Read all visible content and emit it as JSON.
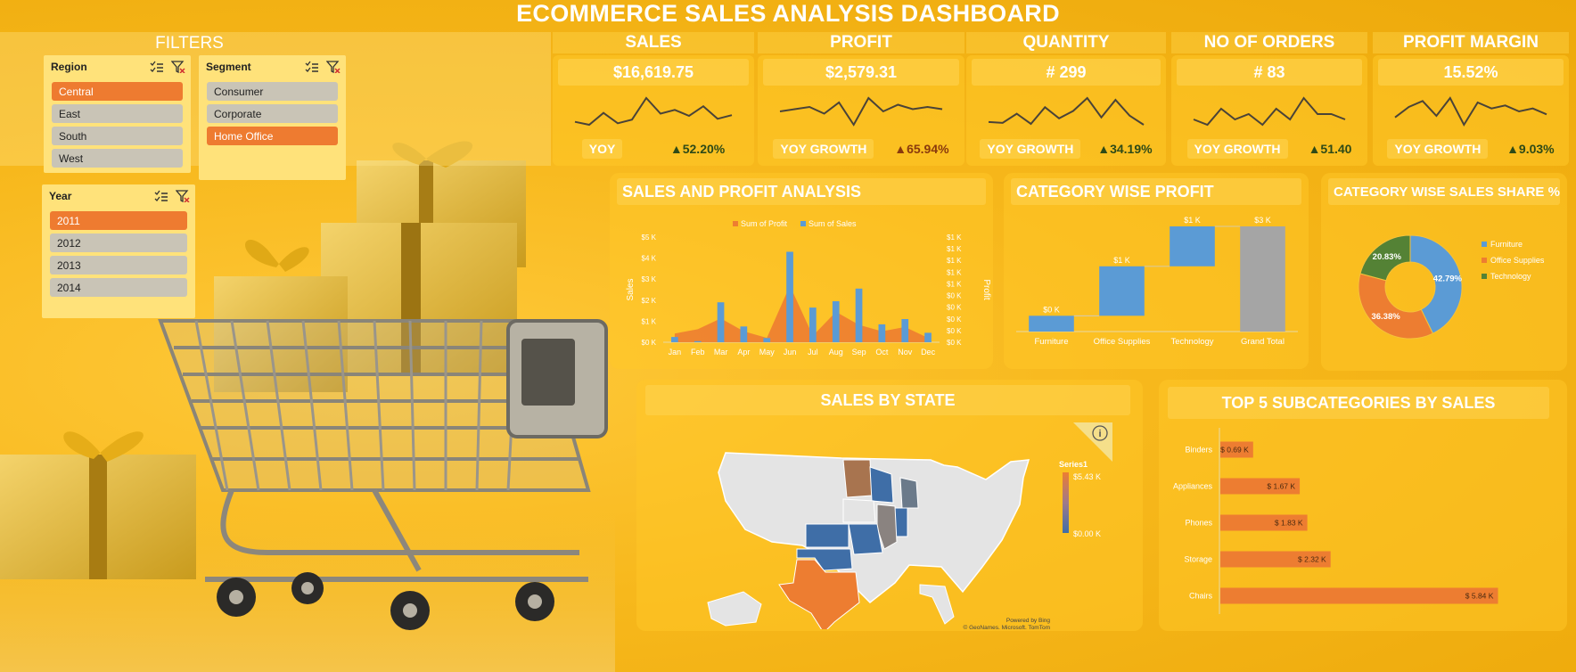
{
  "dashboard": {
    "title": "ECOMMERCE SALES ANALYSIS DASHBOARD"
  },
  "filters": {
    "title": "FILTERS",
    "region": {
      "label": "Region",
      "items": [
        "Central",
        "East",
        "South",
        "West"
      ],
      "selected": "Central"
    },
    "segment": {
      "label": "Segment",
      "items": [
        "Consumer",
        "Corporate",
        "Home Office"
      ],
      "selected": "Home Office"
    },
    "year": {
      "label": "Year",
      "items": [
        "2011",
        "2012",
        "2013",
        "2014"
      ],
      "selected": "2011"
    }
  },
  "kpis": [
    {
      "label": "SALES",
      "value": "$16,619.75",
      "growth_label": "YOY",
      "growth": "▲52.20%",
      "spark": [
        3,
        2.6,
        4.2,
        2.8,
        3.3,
        6.2,
        4.1,
        4.6,
        3.8,
        5.1,
        3.4,
        3.9
      ]
    },
    {
      "label": "PROFIT",
      "value": "$2,579.31",
      "growth_label": "YOY GROWTH",
      "growth": "▲65.94%",
      "spark": [
        3.2,
        3.3,
        3.4,
        3.1,
        3.6,
        2.6,
        3.8,
        3.2,
        3.5,
        3.3,
        3.4,
        3.3
      ]
    },
    {
      "label": "QUANTITY",
      "value": "# 299",
      "growth_label": "YOY GROWTH",
      "growth": "▲34.19%",
      "spark": [
        2.2,
        2.1,
        3.1,
        2.0,
        3.8,
        2.6,
        3.4,
        4.8,
        2.7,
        4.6,
        2.9,
        1.9
      ]
    },
    {
      "label": "NO OF ORDERS",
      "value": "# 83",
      "growth_label": "YOY GROWTH",
      "growth": "▲51.40",
      "spark": [
        3.1,
        3.0,
        3.3,
        3.1,
        3.2,
        3.0,
        3.3,
        3.1,
        3.5,
        3.2,
        3.2,
        3.1
      ]
    },
    {
      "label": "PROFIT MARGIN",
      "value": "15.52%",
      "growth_label": "YOY GROWTH",
      "growth": "▲9.03%",
      "spark": [
        3.1,
        3.8,
        4.2,
        3.2,
        4.4,
        2.6,
        4.1,
        3.7,
        3.9,
        3.5,
        3.7,
        3.3
      ]
    }
  ],
  "panels": {
    "sales_profit": "SALES AND PROFIT ANALYSIS",
    "category_profit": "CATEGORY WISE PROFIT",
    "category_share": "CATEGORY WISE SALES SHARE %",
    "sales_state": "SALES BY STATE",
    "top5": "TOP 5 SUBCATEGORIES BY SALES"
  },
  "colors": {
    "sales": "#5b9bd5",
    "profit": "#ed7d31",
    "technology": "#548235",
    "total": "#a5a5a5",
    "bg": "#f7b81c"
  },
  "chart_data": [
    {
      "type": "bar",
      "id": "sales_profit",
      "categories": [
        "Jan",
        "Feb",
        "Mar",
        "Apr",
        "May",
        "Jun",
        "Jul",
        "Aug",
        "Sep",
        "Oct",
        "Nov",
        "Dec"
      ],
      "series": [
        {
          "name": "Sum of Profit",
          "type": "area",
          "values": [
            0.2,
            0.3,
            0.55,
            0.25,
            0.1,
            1.3,
            0.15,
            0.7,
            0.4,
            0.25,
            0.35,
            0.1
          ]
        },
        {
          "name": "Sum of Sales",
          "type": "bar",
          "values": [
            0.25,
            0.05,
            1.9,
            0.75,
            0.2,
            4.3,
            1.65,
            1.95,
            2.55,
            0.85,
            1.1,
            0.45
          ]
        }
      ],
      "ylabel": "Sales",
      "y2label": "Profit",
      "y_ticks": [
        "$0 K",
        "$1 K",
        "$2 K",
        "$3 K",
        "$4 K",
        "$5 K"
      ],
      "y2_ticks": [
        "$0 K",
        "$0 K",
        "$0 K",
        "$0 K",
        "$0 K",
        "$1 K",
        "$1 K",
        "$1 K",
        "$1 K",
        "$1 K"
      ],
      "ylim": [
        0,
        5
      ]
    },
    {
      "type": "bar",
      "id": "category_profit",
      "subtype": "waterfall",
      "categories": [
        "Furniture",
        "Office Supplies",
        "Technology",
        "Grand Total"
      ],
      "values": [
        0.15,
        0.47,
        0.38,
        1.0
      ],
      "labels": [
        "$0 K",
        "$1 K",
        "$1 K",
        "$3 K"
      ],
      "ylim": [
        0,
        1.0
      ]
    },
    {
      "type": "pie",
      "id": "category_share",
      "subtype": "donut",
      "categories": [
        "Furniture",
        "Office Supplies",
        "Technology"
      ],
      "values": [
        42.79,
        36.38,
        20.83
      ],
      "labels": [
        "42.79%",
        "36.38%",
        "20.83%"
      ]
    },
    {
      "type": "heatmap",
      "id": "sales_state",
      "legend_title": "Series1",
      "legend_max": "$5.43 K",
      "legend_min": "$0.00 K",
      "credit1": "Powered by Bing",
      "credit2": "© GeoNames, Microsoft, TomTom"
    },
    {
      "type": "bar",
      "id": "top5",
      "orientation": "horizontal",
      "categories": [
        "Binders",
        "Appliances",
        "Phones",
        "Storage",
        "Chairs"
      ],
      "values": [
        0.69,
        1.67,
        1.83,
        2.32,
        5.84
      ],
      "labels": [
        "$ 0.69 K",
        "$ 1.67 K",
        "$ 1.83 K",
        "$ 2.32 K",
        "$ 5.84 K"
      ]
    }
  ]
}
